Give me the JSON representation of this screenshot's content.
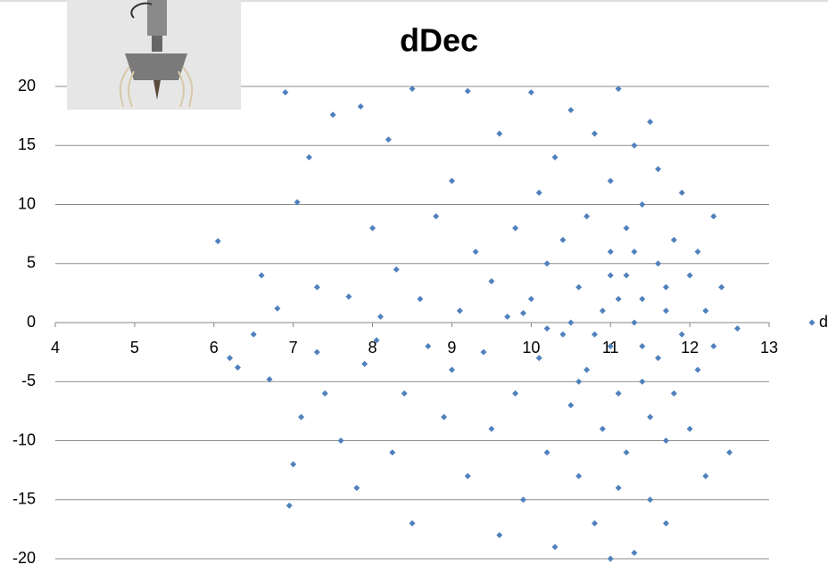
{
  "chart_data": {
    "type": "scatter",
    "title": "dDec",
    "x": [
      6.05,
      6.2,
      6.3,
      6.5,
      6.6,
      6.7,
      6.8,
      6.9,
      6.95,
      7.0,
      7.05,
      7.1,
      7.2,
      7.3,
      7.3,
      7.4,
      7.5,
      7.6,
      7.7,
      7.8,
      7.85,
      7.9,
      8.0,
      8.05,
      8.1,
      8.2,
      8.25,
      8.3,
      8.4,
      8.5,
      8.5,
      8.6,
      8.7,
      8.8,
      8.9,
      9.0,
      9.0,
      9.1,
      9.2,
      9.2,
      9.3,
      9.4,
      9.5,
      9.5,
      9.6,
      9.6,
      9.7,
      9.8,
      9.8,
      9.9,
      10.0,
      10.0,
      10.1,
      10.1,
      10.2,
      10.2,
      10.3,
      10.3,
      10.4,
      10.4,
      10.5,
      10.5,
      10.6,
      10.6,
      10.7,
      10.7,
      10.8,
      10.8,
      10.9,
      10.9,
      11.0,
      11.0,
      11.0,
      11.1,
      11.1,
      11.1,
      11.2,
      11.2,
      11.2,
      11.3,
      11.3,
      11.3,
      11.4,
      11.4,
      11.4,
      11.5,
      11.5,
      11.5,
      11.6,
      11.6,
      11.6,
      11.7,
      11.7,
      11.7,
      11.8,
      11.8,
      11.9,
      11.9,
      12.0,
      12.0,
      12.1,
      12.1,
      12.2,
      12.2,
      12.3,
      12.3,
      12.4,
      12.5,
      12.6,
      11.0,
      10.5,
      10.8,
      11.1,
      11.4,
      9.9,
      10.2,
      11.7,
      11.0,
      10.6,
      11.3
    ],
    "series": [
      {
        "name": "d",
        "color": "#4f81bd",
        "values": [
          6.9,
          -3,
          -3.8,
          -1,
          4,
          -4.8,
          1.2,
          19.5,
          -15.5,
          -12,
          10.2,
          -8,
          14,
          -2.5,
          3,
          -6,
          17.6,
          -10,
          2.2,
          -14,
          18.3,
          -3.5,
          8,
          -1.5,
          0.5,
          15.5,
          -11,
          4.5,
          -6,
          19.8,
          -17,
          2,
          -2,
          9,
          -8,
          12,
          -4,
          1,
          -13,
          19.6,
          6,
          -2.5,
          -9,
          3.5,
          16,
          -18,
          0.5,
          8,
          -6,
          -15,
          19.5,
          2,
          -3,
          11,
          -11,
          5,
          -19,
          14,
          -1,
          7,
          -7,
          18,
          3,
          -13,
          9,
          -4,
          -17,
          16,
          1,
          -9,
          6,
          -2,
          12,
          -6,
          19.8,
          -14,
          4,
          -11,
          8,
          0,
          -19.5,
          15,
          -5,
          10,
          2,
          -8,
          17,
          -15,
          5,
          -3,
          13,
          -10,
          1,
          -17,
          7,
          -6,
          11,
          -1,
          4,
          -9,
          -4,
          6,
          1,
          -13,
          9,
          -2,
          3,
          -11,
          -0.5,
          -20,
          0,
          -1,
          2,
          -2,
          0.8,
          -0.5,
          3,
          4,
          -5,
          6
        ]
      }
    ],
    "xlim": [
      4,
      13
    ],
    "xticks": [
      4,
      5,
      6,
      7,
      8,
      9,
      10,
      11,
      12,
      13
    ],
    "ylim": [
      -20,
      20
    ],
    "yticks": [
      -20,
      -15,
      -10,
      -5,
      0,
      5,
      10,
      15,
      20
    ],
    "grid": true
  }
}
